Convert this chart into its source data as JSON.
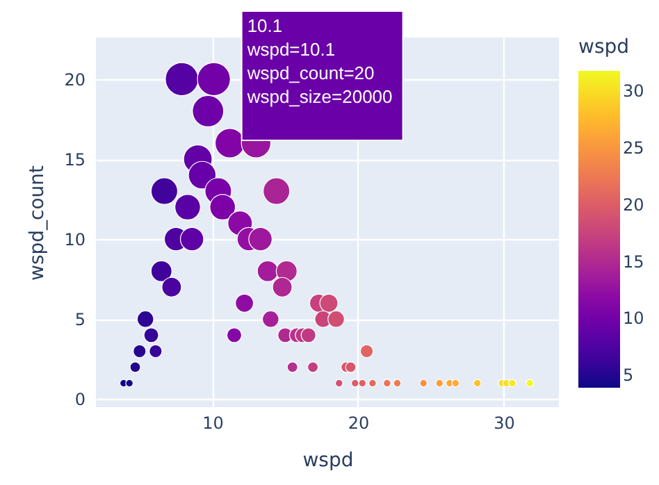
{
  "chart_data": {
    "type": "bubble",
    "xlabel": "wspd",
    "ylabel": "wspd_count",
    "clabel": "wspd",
    "xlim": [
      2.0,
      33.8
    ],
    "ylim": [
      -0.5,
      22.6
    ],
    "xticks": [
      10,
      20,
      30
    ],
    "yticks": [
      0,
      5,
      10,
      15,
      20
    ],
    "clim": [
      3.9,
      31.8
    ],
    "cticks": [
      5,
      10,
      15,
      20,
      25,
      30
    ],
    "grid": true,
    "marker": "circle",
    "x": [
      7.9,
      10.1,
      9.7,
      11.2,
      13.0,
      9.0,
      9.3,
      10.4,
      6.7,
      14.4,
      8.3,
      10.7,
      11.9,
      7.5,
      8.6,
      12.5,
      13.3,
      6.5,
      13.8,
      15.1,
      7.2,
      14.8,
      12.2,
      17.3,
      18.0,
      5.4,
      14.0,
      17.6,
      18.5,
      5.8,
      11.5,
      15.0,
      15.8,
      16.2,
      16.6,
      5.0,
      6.1,
      20.6,
      4.7,
      15.5,
      16.9,
      19.2,
      19.5,
      3.9,
      4.3,
      18.7,
      19.8,
      20.3,
      21.0,
      22.0,
      22.7,
      24.5,
      25.6,
      26.3,
      26.7,
      28.2,
      29.9,
      30.2,
      30.6,
      31.8
    ],
    "values": [
      20,
      20,
      18,
      16,
      16,
      15,
      14,
      13,
      13,
      13,
      12,
      12,
      11,
      10,
      10,
      10,
      10,
      8,
      8,
      8,
      7,
      7,
      6,
      6,
      6,
      5,
      5,
      5,
      5,
      4,
      4,
      4,
      4,
      4,
      4,
      3,
      3,
      3,
      2,
      2,
      2,
      2,
      2,
      1,
      1,
      1,
      1,
      1,
      1,
      1,
      1,
      1,
      1,
      1,
      1,
      1,
      1,
      1,
      1,
      1
    ],
    "sizes": [
      1,
      1,
      0.9,
      0.8,
      0.8,
      0.75,
      0.7,
      0.65,
      0.65,
      0.65,
      0.6,
      0.6,
      0.55,
      0.5,
      0.5,
      0.5,
      0.5,
      0.4,
      0.4,
      0.4,
      0.35,
      0.35,
      0.3,
      0.3,
      0.3,
      0.25,
      0.25,
      0.25,
      0.25,
      0.2,
      0.2,
      0.2,
      0.2,
      0.2,
      0.2,
      0.15,
      0.15,
      0.15,
      0.1,
      0.1,
      0.1,
      0.1,
      0.1,
      0.05,
      0.05,
      0.05,
      0.05,
      0.05,
      0.05,
      0.05,
      0.05,
      0.05,
      0.05,
      0.05,
      0.05,
      0.05,
      0.05,
      0.05,
      0.05,
      0.05
    ],
    "cvalues": [
      7.9,
      10.1,
      9.7,
      11.2,
      13.0,
      9.0,
      9.3,
      10.4,
      6.7,
      14.4,
      8.3,
      10.7,
      11.9,
      7.5,
      8.6,
      12.5,
      13.3,
      6.5,
      13.8,
      15.1,
      7.2,
      14.8,
      12.2,
      17.3,
      18.0,
      5.4,
      14.0,
      17.6,
      18.5,
      5.8,
      11.5,
      15.0,
      15.8,
      16.2,
      16.6,
      5.0,
      6.1,
      20.6,
      4.7,
      15.5,
      16.9,
      19.2,
      19.5,
      3.9,
      4.3,
      18.7,
      19.8,
      20.3,
      21.0,
      22.0,
      22.7,
      24.5,
      25.6,
      26.3,
      26.7,
      28.2,
      29.9,
      30.2,
      30.6,
      31.8
    ],
    "annotations": [
      {
        "text": "10.1\n\nwspd=10.1\nwspd_count=20\nwspd_size=20000",
        "x": 10.1,
        "y": 20
      }
    ]
  }
}
